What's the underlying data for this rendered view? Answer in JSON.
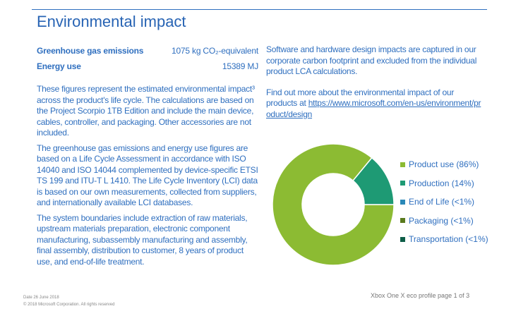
{
  "title": "Environmental impact",
  "metrics": [
    {
      "label": "Greenhouse gas emissions",
      "value": "1075 kg CO₂-equivalent"
    },
    {
      "label": "Energy use",
      "value": "15389 MJ"
    }
  ],
  "paragraphs": [
    "These figures represent the estimated environmental impact³ across the product's life cycle. The calculations are based on the Project Scorpio 1TB Edition and include the main device, cables, controller, and packaging. Other accessories are not included.",
    "The greenhouse gas emissions and energy use figures are based on a Life Cycle Assessment in accordance with ISO 14040 and ISO 14044 complemented by device-specific ETSI TS 199 and ITU-T L 1410. The Life Cycle Inventory (LCI) data is based on our own measurements, collected from suppliers, and internationally available LCI databases.",
    "The system boundaries include extraction of raw materials, upstream materials preparation, electronic component manufacturing, subassembly manufacturing and assembly, final assembly, distribution to customer, 8 years of product use, and end-of-life treatment."
  ],
  "right_paragraphs": {
    "p1": "Software and hardware design impacts are captured in our corporate carbon footprint and excluded from the individual product LCA calculations.",
    "p2": "Find out more about the environmental impact of our products at ",
    "link": "https://www.microsoft.com/en-us/environment/product/design"
  },
  "chart_data": {
    "type": "pie",
    "donut": true,
    "slices": [
      {
        "label": "Product use (86%)",
        "value": 86,
        "color": "#8cbb33"
      },
      {
        "label": "Production (14%)",
        "value": 14,
        "color": "#1e9a74"
      },
      {
        "label": "End of Life (<1%)",
        "value": 0,
        "color": "#2a88b8"
      },
      {
        "label": "Packaging (<1%)",
        "value": 0,
        "color": "#5a7a1e"
      },
      {
        "label": "Transportation (<1%)",
        "value": 0,
        "color": "#0e5e48"
      }
    ],
    "legend_position": "right"
  },
  "footer": {
    "date": "Date 26 June 2018",
    "copyright": "© 2018 Microsoft Corporation. All rights reserved",
    "page": "Xbox One X eco profile page 1 of 3"
  }
}
